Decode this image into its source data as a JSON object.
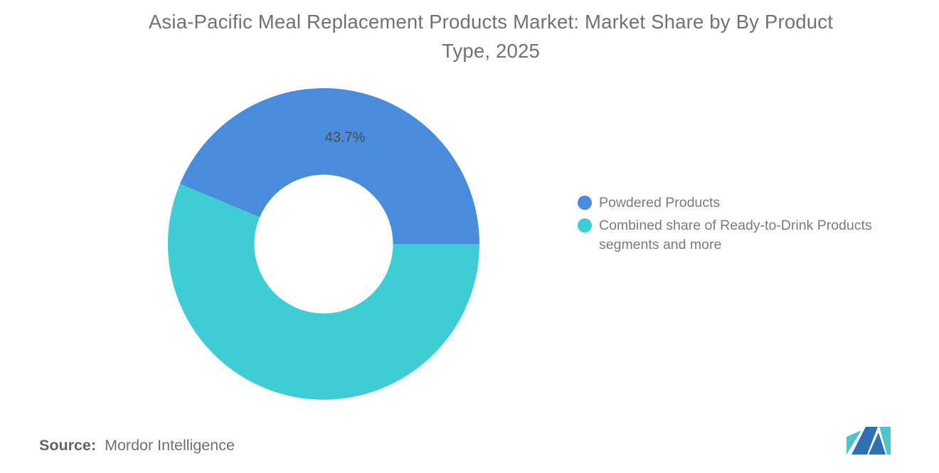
{
  "title": {
    "line1": "Asia-Pacific Meal Replacement Products Market: Market Share by By Product",
    "line2": "Type, 2025"
  },
  "chart_data": {
    "type": "pie",
    "subtype": "donut",
    "title": "Asia-Pacific Meal Replacement Products Market: Market Share by By Product Type, 2025",
    "series": [
      {
        "name": "Powdered Products",
        "value": 43.7,
        "value_label": "43.7%",
        "color": "#4A8CDC"
      },
      {
        "name": "Combined share of Ready-to-Drink Products segments and more",
        "value": 56.3,
        "value_label": "",
        "color": "#3ECDD5"
      }
    ],
    "start_angle_deg": 292.68,
    "inner_radius_ratio": 0.445,
    "legend_position": "right",
    "label_color": "#4a4a4a"
  },
  "source": {
    "label": "Source:",
    "text": "Mordor Intelligence"
  },
  "logo": {
    "alt": "Mordor Intelligence logo",
    "teal": "#50C4CB",
    "blue": "#2E70B2"
  }
}
